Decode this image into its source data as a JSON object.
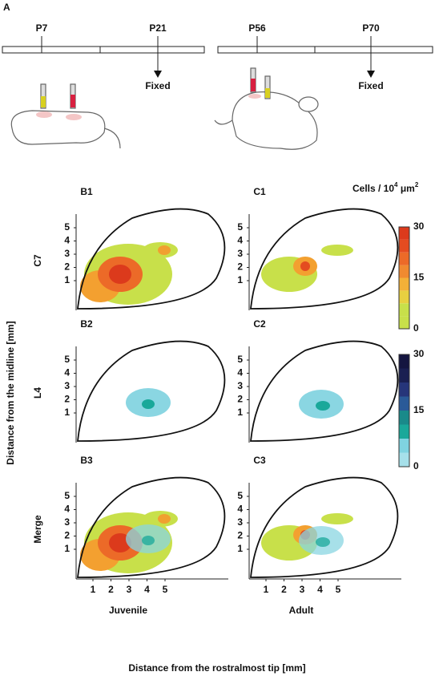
{
  "panel_a": {
    "label": "A",
    "left_timeline": {
      "start": "P7",
      "end": "P21",
      "fixed": "Fixed"
    },
    "right_timeline": {
      "start": "P56",
      "end": "P70",
      "fixed": "Fixed"
    }
  },
  "colorbar": {
    "title": "Cells / 10",
    "title_exp": "4",
    "title_unit": " μm",
    "title_unit_exp": "2",
    "warm_ticks": [
      "30",
      "15",
      "0"
    ],
    "cool_ticks": [
      "30",
      "15",
      "0"
    ]
  },
  "panel_labels": [
    [
      "B1",
      "C1"
    ],
    [
      "B2",
      "C2"
    ],
    [
      "B3",
      "C3"
    ]
  ],
  "rows": [
    "C7",
    "L4",
    "Merge"
  ],
  "columns": [
    "Juvenile",
    "Adult"
  ],
  "y_ticks": [
    "1",
    "2",
    "3",
    "4",
    "5"
  ],
  "x_ticks": [
    "1",
    "2",
    "3",
    "4",
    "5"
  ],
  "y_label": "Distance from the midline [mm]",
  "x_label": "Distance from the rostralmost tip [mm]"
}
